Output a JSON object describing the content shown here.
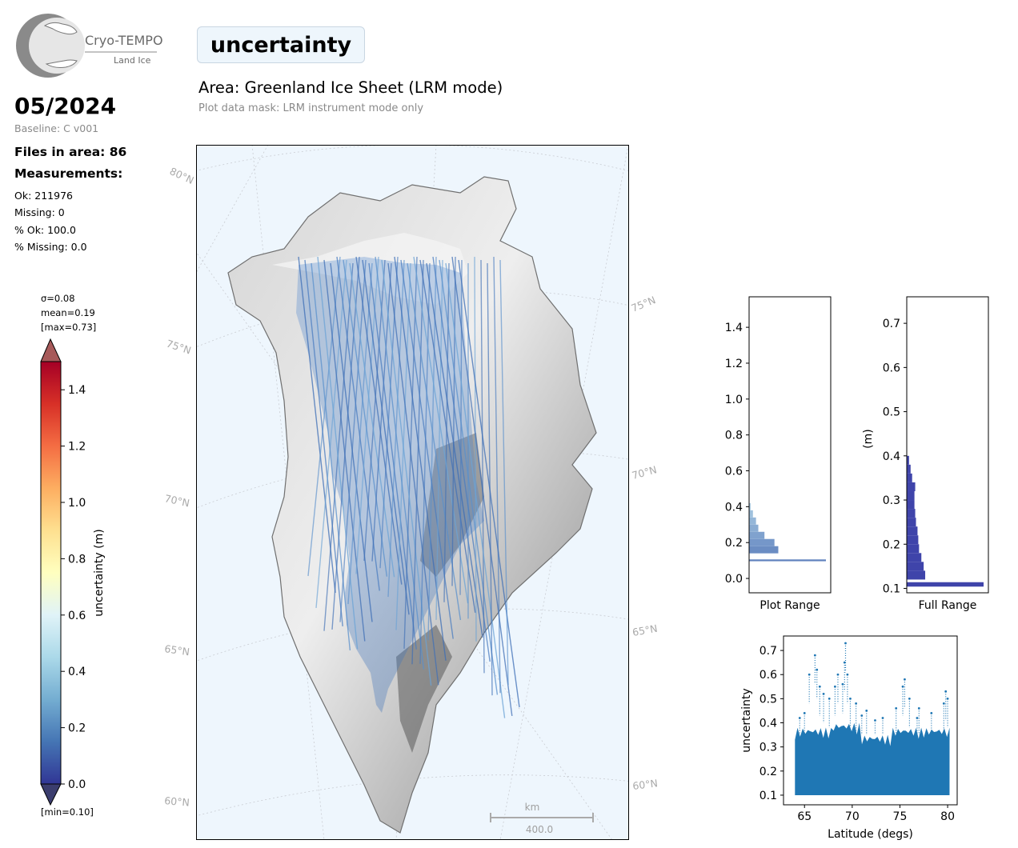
{
  "logo": {
    "name": "Cryo-TEMPO",
    "subtitle": "Land Ice"
  },
  "header": {
    "date": "05/2024",
    "baseline": "Baseline: C v001",
    "parameter": "uncertainty",
    "area": "Area: Greenland Ice Sheet (LRM mode)",
    "mask": "Plot data mask: LRM instrument mode only"
  },
  "stats": {
    "files": "Files in area: 86",
    "measurements_heading": "Measurements:",
    "ok": "Ok: 211976",
    "missing": "Missing: 0",
    "pct_ok": "% Ok: 100.0",
    "pct_missing": "% Missing: 0.0"
  },
  "colorbar": {
    "sigma": "σ=0.08",
    "mean": "mean=0.19",
    "max": "[max=0.73]",
    "min": "[min=0.10]",
    "label": "uncertainty (m)",
    "ticks": [
      "0.0",
      "0.2",
      "0.4",
      "0.6",
      "0.8",
      "1.0",
      "1.2",
      "1.4"
    ],
    "range": [
      0,
      1.5
    ],
    "colormap": "RdYlBu_r",
    "over_color": "#a75a5a",
    "under_color": "#3b3d6e"
  },
  "map": {
    "background": "#eef6fd",
    "lat_labels_left": [
      "80°N",
      "75°N",
      "70°N",
      "65°N",
      "60°N"
    ],
    "lat_labels_right": [
      "75°N",
      "70°N",
      "65°N",
      "60°N"
    ],
    "scalebar_unit": "km",
    "scalebar_value": "400.0"
  },
  "chart_data": [
    {
      "type": "bar",
      "orientation": "horizontal",
      "title": "",
      "xlabel": "Plot Range",
      "ylabel": "",
      "ylim": [
        -0.08,
        1.57
      ],
      "yticks": [
        "0.0",
        "0.2",
        "0.4",
        "0.6",
        "0.8",
        "1.0",
        "1.2",
        "1.4"
      ],
      "bins": [
        {
          "y": 0.1,
          "count": 1.0
        },
        {
          "y": 0.14,
          "count": 0.38
        },
        {
          "y": 0.18,
          "count": 0.33
        },
        {
          "y": 0.22,
          "count": 0.2
        },
        {
          "y": 0.26,
          "count": 0.12
        },
        {
          "y": 0.3,
          "count": 0.09
        },
        {
          "y": 0.34,
          "count": 0.05
        },
        {
          "y": 0.38,
          "count": 0.02
        }
      ]
    },
    {
      "type": "bar",
      "orientation": "horizontal",
      "title": "",
      "xlabel": "Full Range",
      "ylabel": "(m)",
      "ylim": [
        0.09,
        0.76
      ],
      "yticks": [
        "0.1",
        "0.2",
        "0.3",
        "0.4",
        "0.5",
        "0.6",
        "0.7"
      ],
      "bins": [
        {
          "y": 0.108,
          "count": 1.0
        },
        {
          "y": 0.12,
          "count": 0.24
        },
        {
          "y": 0.14,
          "count": 0.22
        },
        {
          "y": 0.16,
          "count": 0.19
        },
        {
          "y": 0.18,
          "count": 0.16
        },
        {
          "y": 0.2,
          "count": 0.15
        },
        {
          "y": 0.22,
          "count": 0.14
        },
        {
          "y": 0.24,
          "count": 0.12
        },
        {
          "y": 0.26,
          "count": 0.11
        },
        {
          "y": 0.28,
          "count": 0.1
        },
        {
          "y": 0.3,
          "count": 0.1
        },
        {
          "y": 0.32,
          "count": 0.11
        },
        {
          "y": 0.34,
          "count": 0.07
        },
        {
          "y": 0.36,
          "count": 0.05
        },
        {
          "y": 0.38,
          "count": 0.03
        }
      ]
    },
    {
      "type": "scatter",
      "title": "",
      "xlabel": "Latitude (degs)",
      "ylabel": "uncertainty",
      "xlim": [
        62.8,
        81.0
      ],
      "ylim": [
        0.06,
        0.76
      ],
      "xticks": [
        "65",
        "70",
        "75",
        "80"
      ],
      "yticks": [
        "0.1",
        "0.2",
        "0.3",
        "0.4",
        "0.5",
        "0.6",
        "0.7"
      ],
      "color": "#1f77b4",
      "bulk_band": {
        "x": [
          64.0,
          80.2
        ],
        "y_low": 0.1,
        "y_high": 0.37
      },
      "points": [
        [
          65.5,
          0.6
        ],
        [
          66.1,
          0.68
        ],
        [
          66.3,
          0.62
        ],
        [
          66.6,
          0.55
        ],
        [
          67.0,
          0.52
        ],
        [
          67.6,
          0.5
        ],
        [
          68.2,
          0.55
        ],
        [
          68.5,
          0.6
        ],
        [
          69.0,
          0.56
        ],
        [
          69.2,
          0.65
        ],
        [
          69.3,
          0.73
        ],
        [
          69.5,
          0.6
        ],
        [
          69.8,
          0.5
        ],
        [
          70.4,
          0.48
        ],
        [
          71.5,
          0.45
        ],
        [
          73.2,
          0.42
        ],
        [
          74.6,
          0.46
        ],
        [
          75.3,
          0.55
        ],
        [
          75.5,
          0.58
        ],
        [
          76.0,
          0.5
        ],
        [
          77.0,
          0.46
        ],
        [
          78.3,
          0.44
        ],
        [
          79.6,
          0.48
        ],
        [
          79.8,
          0.53
        ],
        [
          80.0,
          0.5
        ],
        [
          64.5,
          0.42
        ],
        [
          65.0,
          0.44
        ],
        [
          71.0,
          0.43
        ],
        [
          72.4,
          0.41
        ],
        [
          76.8,
          0.42
        ]
      ]
    }
  ]
}
